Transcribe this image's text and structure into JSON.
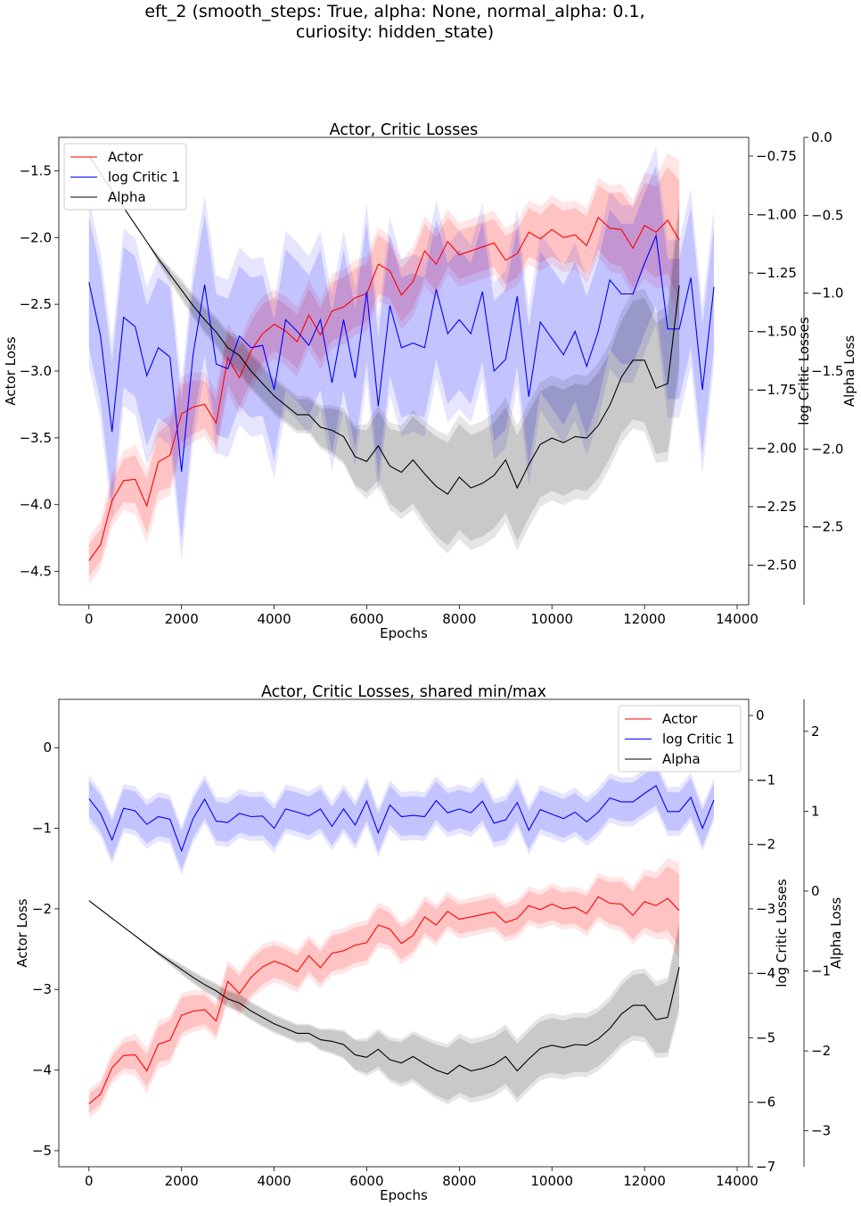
{
  "suptitle": {
    "line1": "eft_2 (smooth_steps: True, alpha: None, normal_alpha: 0.1,",
    "line2": "curiosity: hidden_state)"
  },
  "colors": {
    "actor": "#ff0000",
    "critic": "#0000ff",
    "alpha": "#000000"
  },
  "chart_data": [
    {
      "type": "line",
      "title": "Actor, Critic Losses",
      "xlabel": "Epochs",
      "ylabel": "Actor Loss",
      "y2label": "log Critic Losses",
      "y3label": "Alpha Loss",
      "xlim": [
        -650,
        14250
      ],
      "ylim": [
        -4.75,
        -1.25
      ],
      "y2lim": [
        -2.67,
        -0.67
      ],
      "y3lim": [
        -3.0,
        0.0
      ],
      "xticks": [
        0,
        2000,
        4000,
        6000,
        8000,
        10000,
        12000,
        14000
      ],
      "yticks": [
        -4.5,
        -4.0,
        -3.5,
        -3.0,
        -2.5,
        -2.0,
        -1.5
      ],
      "y2ticks": [
        -2.5,
        -2.25,
        -2.0,
        -1.75,
        -1.5,
        -1.25,
        -1.0,
        -0.75
      ],
      "y3ticks": [
        -2.5,
        -2.0,
        -1.5,
        -1.0,
        -0.5,
        0.0
      ],
      "legend_position": "upper left",
      "legend": [
        "Actor",
        "log Critic 1",
        "Alpha"
      ]
    },
    {
      "type": "line",
      "title": "Actor, Critic Losses, shared min/max",
      "xlabel": "Epochs",
      "ylabel": "Actor Loss",
      "y2label": "log Critic Losses",
      "y3label": "Alpha Loss",
      "xlim": [
        -650,
        14250
      ],
      "ylim": [
        -5.2,
        0.6
      ],
      "y2lim": [
        -7.0,
        0.25
      ],
      "y3lim": [
        -3.45,
        2.4
      ],
      "xticks": [
        0,
        2000,
        4000,
        6000,
        8000,
        10000,
        12000,
        14000
      ],
      "yticks": [
        -5,
        -4,
        -3,
        -2,
        -1,
        0
      ],
      "y2ticks": [
        -7,
        -6,
        -5,
        -4,
        -3,
        -2,
        -1,
        0
      ],
      "y3ticks": [
        -3,
        -2,
        -1,
        0,
        1,
        2
      ],
      "legend_position": "upper right",
      "legend": [
        "Actor",
        "log Critic 1",
        "Alpha"
      ]
    }
  ],
  "series": {
    "actor": {
      "name": "Actor",
      "x": [
        0,
        250,
        500,
        750,
        1000,
        1250,
        1500,
        1750,
        2000,
        2250,
        2500,
        2750,
        3000,
        3250,
        3500,
        3750,
        4000,
        4250,
        4500,
        4750,
        5000,
        5250,
        5500,
        5750,
        6000,
        6250,
        6500,
        6750,
        7000,
        7250,
        7500,
        7750,
        8000,
        8250,
        8500,
        8750,
        9000,
        9250,
        9500,
        9750,
        10000,
        10250,
        10500,
        10750,
        11000,
        11250,
        11500,
        11750,
        12000,
        12250,
        12500,
        12750
      ],
      "y": [
        -4.42,
        -4.3,
        -3.97,
        -3.82,
        -3.81,
        -4.01,
        -3.68,
        -3.63,
        -3.32,
        -3.27,
        -3.25,
        -3.39,
        -2.9,
        -3.05,
        -2.85,
        -2.72,
        -2.65,
        -2.7,
        -2.78,
        -2.58,
        -2.73,
        -2.55,
        -2.52,
        -2.45,
        -2.42,
        -2.2,
        -2.25,
        -2.43,
        -2.33,
        -2.1,
        -2.2,
        -2.03,
        -2.13,
        -2.1,
        -2.07,
        -2.04,
        -2.17,
        -2.12,
        -1.96,
        -2.01,
        -1.94,
        -2.0,
        -1.98,
        -2.06,
        -1.85,
        -1.93,
        -1.94,
        -2.08,
        -1.91,
        -1.96,
        -1.87,
        -2.02
      ],
      "band_inner": [
        0.12,
        0.12,
        0.14,
        0.16,
        0.18,
        0.2,
        0.22,
        0.24,
        0.22,
        0.2,
        0.18,
        0.18,
        0.2,
        0.22,
        0.22,
        0.22,
        0.2,
        0.2,
        0.2,
        0.2,
        0.2,
        0.22,
        0.22,
        0.22,
        0.22,
        0.22,
        0.2,
        0.2,
        0.2,
        0.2,
        0.2,
        0.18,
        0.18,
        0.18,
        0.18,
        0.18,
        0.18,
        0.18,
        0.18,
        0.18,
        0.2,
        0.2,
        0.2,
        0.22,
        0.24,
        0.26,
        0.28,
        0.3,
        0.32,
        0.34,
        0.4,
        0.45
      ],
      "band_outer": [
        0.18,
        0.18,
        0.2,
        0.22,
        0.26,
        0.28,
        0.3,
        0.3,
        0.28,
        0.26,
        0.24,
        0.24,
        0.26,
        0.28,
        0.28,
        0.28,
        0.26,
        0.26,
        0.26,
        0.26,
        0.26,
        0.28,
        0.28,
        0.28,
        0.28,
        0.28,
        0.26,
        0.26,
        0.26,
        0.26,
        0.26,
        0.24,
        0.24,
        0.24,
        0.24,
        0.24,
        0.24,
        0.24,
        0.24,
        0.24,
        0.26,
        0.26,
        0.26,
        0.28,
        0.3,
        0.32,
        0.34,
        0.36,
        0.4,
        0.42,
        0.5,
        0.6
      ]
    },
    "critic": {
      "name": "log Critic 1",
      "x": [
        0,
        250,
        500,
        750,
        1000,
        1250,
        1500,
        1750,
        2000,
        2250,
        2500,
        2750,
        3000,
        3250,
        3500,
        3750,
        4000,
        4250,
        4500,
        4750,
        5000,
        5250,
        5500,
        5750,
        6000,
        6250,
        6500,
        6750,
        7000,
        7250,
        7500,
        7750,
        8000,
        8250,
        8500,
        8750,
        9000,
        9250,
        9500,
        9750,
        10000,
        10250,
        10500,
        10750,
        11000,
        11250,
        11500,
        11750,
        12000,
        12250,
        12500,
        12750,
        13000,
        13250,
        13500
      ],
      "y": [
        -1.29,
        -1.52,
        -1.93,
        -1.44,
        -1.48,
        -1.69,
        -1.57,
        -1.61,
        -2.1,
        -1.6,
        -1.3,
        -1.64,
        -1.66,
        -1.52,
        -1.57,
        -1.56,
        -1.75,
        -1.45,
        -1.5,
        -1.56,
        -1.45,
        -1.72,
        -1.45,
        -1.7,
        -1.33,
        -1.82,
        -1.39,
        -1.57,
        -1.55,
        -1.57,
        -1.32,
        -1.51,
        -1.45,
        -1.51,
        -1.33,
        -1.67,
        -1.62,
        -1.35,
        -1.78,
        -1.46,
        -1.53,
        -1.6,
        -1.5,
        -1.65,
        -1.5,
        -1.28,
        -1.34,
        -1.34,
        -1.21,
        -1.09,
        -1.49,
        -1.49,
        -1.27,
        -1.75,
        -1.31
      ],
      "band_inner": [
        0.28,
        0.28,
        0.3,
        0.3,
        0.3,
        0.3,
        0.3,
        0.3,
        0.3,
        0.3,
        0.3,
        0.3,
        0.3,
        0.3,
        0.3,
        0.3,
        0.3,
        0.3,
        0.3,
        0.3,
        0.3,
        0.3,
        0.3,
        0.3,
        0.3,
        0.3,
        0.3,
        0.3,
        0.3,
        0.3,
        0.3,
        0.3,
        0.3,
        0.3,
        0.3,
        0.3,
        0.3,
        0.3,
        0.3,
        0.3,
        0.3,
        0.3,
        0.3,
        0.3,
        0.3,
        0.3,
        0.3,
        0.3,
        0.3,
        0.3,
        0.3,
        0.3,
        0.3,
        0.28,
        0.26
      ],
      "band_outer": [
        0.36,
        0.36,
        0.38,
        0.38,
        0.38,
        0.38,
        0.38,
        0.38,
        0.38,
        0.38,
        0.38,
        0.38,
        0.38,
        0.38,
        0.38,
        0.38,
        0.38,
        0.38,
        0.38,
        0.38,
        0.38,
        0.38,
        0.38,
        0.38,
        0.38,
        0.38,
        0.38,
        0.38,
        0.38,
        0.38,
        0.38,
        0.38,
        0.38,
        0.38,
        0.38,
        0.38,
        0.38,
        0.38,
        0.38,
        0.38,
        0.38,
        0.38,
        0.38,
        0.38,
        0.38,
        0.38,
        0.38,
        0.38,
        0.38,
        0.38,
        0.38,
        0.38,
        0.38,
        0.36,
        0.34
      ]
    },
    "alpha": {
      "name": "Alpha",
      "x": [
        0,
        250,
        500,
        750,
        1000,
        1250,
        1500,
        1750,
        2000,
        2250,
        2500,
        2750,
        3000,
        3250,
        3500,
        3750,
        4000,
        4250,
        4500,
        4750,
        5000,
        5250,
        5500,
        5750,
        6000,
        6250,
        6500,
        6750,
        7000,
        7250,
        7500,
        7750,
        8000,
        8250,
        8500,
        8750,
        9000,
        9250,
        9500,
        9750,
        10000,
        10250,
        10500,
        10750,
        11000,
        11250,
        11500,
        11750,
        12000,
        12250,
        12500,
        12750
      ],
      "y": [
        -0.12,
        -0.23,
        -0.34,
        -0.45,
        -0.56,
        -0.67,
        -0.78,
        -0.88,
        -0.98,
        -1.08,
        -1.17,
        -1.25,
        -1.35,
        -1.4,
        -1.5,
        -1.58,
        -1.66,
        -1.72,
        -1.78,
        -1.78,
        -1.86,
        -1.88,
        -1.92,
        -2.05,
        -2.08,
        -1.98,
        -2.11,
        -2.15,
        -2.07,
        -2.16,
        -2.24,
        -2.29,
        -2.18,
        -2.25,
        -2.22,
        -2.17,
        -2.07,
        -2.25,
        -2.1,
        -1.97,
        -1.93,
        -1.96,
        -1.92,
        -1.93,
        -1.85,
        -1.72,
        -1.54,
        -1.43,
        -1.43,
        -1.61,
        -1.58,
        -0.95
      ],
      "band_inner": [
        0.0,
        0.0,
        0.0,
        0.0,
        0.0,
        0.0,
        0.02,
        0.03,
        0.05,
        0.06,
        0.07,
        0.08,
        0.09,
        0.1,
        0.1,
        0.1,
        0.1,
        0.1,
        0.1,
        0.1,
        0.12,
        0.14,
        0.16,
        0.18,
        0.2,
        0.22,
        0.24,
        0.26,
        0.28,
        0.3,
        0.32,
        0.33,
        0.34,
        0.34,
        0.34,
        0.34,
        0.34,
        0.34,
        0.34,
        0.34,
        0.34,
        0.34,
        0.34,
        0.34,
        0.34,
        0.34,
        0.36,
        0.38,
        0.4,
        0.42,
        0.44,
        0.5
      ],
      "band_outer": [
        0.0,
        0.0,
        0.0,
        0.0,
        0.0,
        0.0,
        0.03,
        0.05,
        0.07,
        0.08,
        0.09,
        0.1,
        0.11,
        0.12,
        0.12,
        0.12,
        0.12,
        0.12,
        0.12,
        0.12,
        0.14,
        0.16,
        0.18,
        0.2,
        0.24,
        0.26,
        0.28,
        0.3,
        0.32,
        0.34,
        0.36,
        0.38,
        0.4,
        0.4,
        0.4,
        0.4,
        0.4,
        0.4,
        0.4,
        0.4,
        0.4,
        0.4,
        0.4,
        0.4,
        0.4,
        0.4,
        0.42,
        0.44,
        0.46,
        0.48,
        0.5,
        0.58
      ]
    }
  }
}
